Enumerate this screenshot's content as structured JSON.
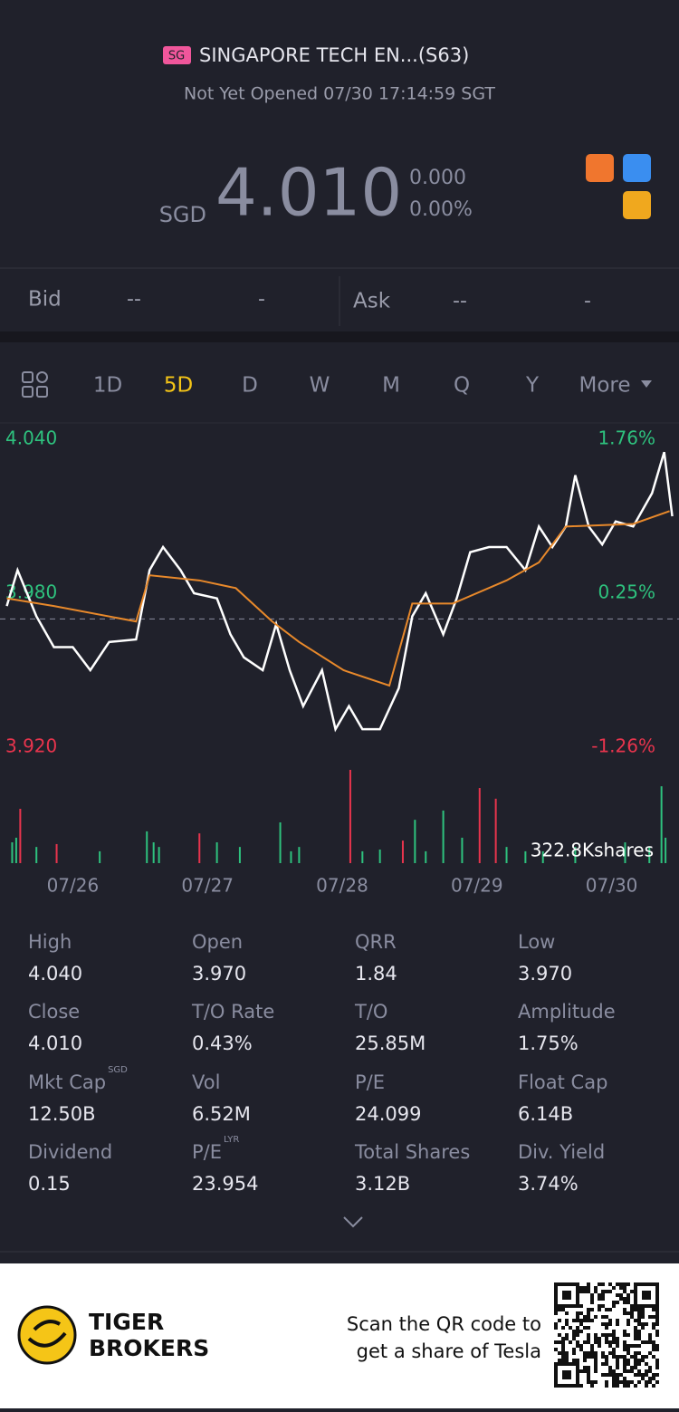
{
  "header": {
    "badge": "SG",
    "name": "SINGAPORE TECH EN...(S63)",
    "status": "Not Yet Opened 07/30 17:14:59 SGT",
    "currency": "SGD",
    "price": "4.010",
    "change": "0.000",
    "change_pct": "0.00%"
  },
  "quote": {
    "bid_label": "Bid",
    "bid": "--",
    "bid_size": "-",
    "ask_label": "Ask",
    "ask": "--",
    "ask_size": "-"
  },
  "tabs": {
    "items": [
      "1D",
      "5D",
      "D",
      "W",
      "M",
      "Q",
      "Y",
      "More"
    ],
    "active": 1
  },
  "chart_data": {
    "type": "line",
    "xlim": [
      0,
      5
    ],
    "ylim": [
      3.92,
      4.04
    ],
    "y2lim": [
      -1.26,
      1.76
    ],
    "yticks": [
      {
        "value": 4.04,
        "label": "4.040"
      },
      {
        "value": 3.98,
        "label": "3.980"
      },
      {
        "value": 3.92,
        "label": "3.920"
      }
    ],
    "y2ticks": [
      {
        "value": 1.76,
        "label": "1.76%"
      },
      {
        "value": 0.25,
        "label": "0.25%"
      },
      {
        "value": -1.26,
        "label": "-1.26%"
      }
    ],
    "xticks": [
      {
        "value": 0.5,
        "label": "07/26"
      },
      {
        "value": 1.5,
        "label": "07/27"
      },
      {
        "value": 2.5,
        "label": "07/28"
      },
      {
        "value": 3.5,
        "label": "07/29"
      },
      {
        "value": 4.5,
        "label": "07/30"
      }
    ],
    "baseline": 3.97,
    "series": [
      {
        "color": "#ffffff",
        "x": [
          0.01,
          0.09,
          0.23,
          0.36,
          0.5,
          0.63,
          0.77,
          0.97,
          1.07,
          1.17,
          1.3,
          1.4,
          1.57,
          1.67,
          1.77,
          1.91,
          2.01,
          2.11,
          2.21,
          2.35,
          2.45,
          2.55,
          2.65,
          2.78,
          2.92,
          3.02,
          3.12,
          3.25,
          3.35,
          3.45,
          3.59,
          3.72,
          3.86,
          3.96,
          4.06,
          4.16,
          4.23,
          4.33,
          4.43,
          4.53,
          4.66,
          4.8,
          4.89,
          4.95
        ],
        "values": [
          3.975,
          3.989,
          3.971,
          3.959,
          3.959,
          3.95,
          3.961,
          3.962,
          3.989,
          3.998,
          3.989,
          3.98,
          3.978,
          3.964,
          3.955,
          3.95,
          3.968,
          3.95,
          3.936,
          3.95,
          3.927,
          3.936,
          3.927,
          3.927,
          3.943,
          3.971,
          3.98,
          3.964,
          3.978,
          3.996,
          3.998,
          3.998,
          3.989,
          4.006,
          3.998,
          4.006,
          4.026,
          4.006,
          3.999,
          4.008,
          4.006,
          4.019,
          4.035,
          4.01
        ]
      },
      {
        "color": "#e8892b",
        "x": [
          0.01,
          0.36,
          0.97,
          1.07,
          1.44,
          1.71,
          1.98,
          2.18,
          2.51,
          2.85,
          3.02,
          3.32,
          3.72,
          3.96,
          4.16,
          4.66,
          4.93
        ],
        "values": [
          3.978,
          3.975,
          3.969,
          3.987,
          3.985,
          3.982,
          3.969,
          3.961,
          3.95,
          3.944,
          3.976,
          3.976,
          3.985,
          3.992,
          4.006,
          4.007,
          4.012
        ]
      }
    ],
    "volume": {
      "label": "322.8Kshares",
      "ylim": [
        0,
        322.8
      ],
      "x": [
        0.05,
        0.08,
        0.11,
        0.23,
        0.38,
        0.7,
        1.05,
        1.1,
        1.14,
        1.44,
        1.57,
        1.74,
        2.04,
        2.12,
        2.18,
        2.56,
        2.65,
        2.78,
        2.95,
        3.04,
        3.12,
        3.25,
        3.39,
        3.52,
        3.64,
        3.72,
        3.86,
        3.99,
        4.23,
        4.6,
        4.78,
        4.87,
        4.9
      ],
      "values": [
        72,
        88,
        188,
        56,
        66,
        41,
        110,
        72,
        56,
        103,
        72,
        56,
        141,
        41,
        56,
        322.8,
        41,
        47,
        78,
        150,
        41,
        182,
        88,
        260,
        223,
        56,
        41,
        41,
        56,
        72,
        56,
        266,
        88
      ],
      "colors": [
        "#2ec27e",
        "#2ec27e",
        "#e8344d",
        "#2ec27e",
        "#e8344d",
        "#2ec27e",
        "#2ec27e",
        "#2ec27e",
        "#2ec27e",
        "#e8344d",
        "#2ec27e",
        "#2ec27e",
        "#2ec27e",
        "#2ec27e",
        "#2ec27e",
        "#e8344d",
        "#2ec27e",
        "#2ec27e",
        "#e8344d",
        "#2ec27e",
        "#2ec27e",
        "#2ec27e",
        "#2ec27e",
        "#e8344d",
        "#e8344d",
        "#2ec27e",
        "#2ec27e",
        "#2ec27e",
        "#2ec27e",
        "#2ec27e",
        "#2ec27e",
        "#2ec27e",
        "#2ec27e"
      ]
    }
  },
  "stats": [
    [
      {
        "label": "High",
        "value": "4.040"
      },
      {
        "label": "Open",
        "value": "3.970"
      },
      {
        "label": "QRR",
        "value": "1.84"
      },
      {
        "label": "Low",
        "value": "3.970"
      }
    ],
    [
      {
        "label": "Close",
        "value": "4.010"
      },
      {
        "label": "T/O Rate",
        "value": "0.43%"
      },
      {
        "label": "T/O",
        "value": "25.85M"
      },
      {
        "label": "Amplitude",
        "value": "1.75%"
      }
    ],
    [
      {
        "label": "Mkt Cap",
        "sup": "SGD",
        "value": "12.50B"
      },
      {
        "label": "Vol",
        "value": "6.52M"
      },
      {
        "label": "P/E",
        "value": "24.099"
      },
      {
        "label": "Float Cap",
        "value": "6.14B"
      }
    ],
    [
      {
        "label": "Dividend",
        "value": "0.15"
      },
      {
        "label": "P/E",
        "sup": "LYR",
        "value": "23.954"
      },
      {
        "label": "Total Shares",
        "value": "3.12B"
      },
      {
        "label": "Div. Yield",
        "value": "3.74%"
      }
    ]
  ],
  "footer": {
    "brand": [
      "TIGER",
      "BROKERS"
    ],
    "promo": [
      "Scan the QR code to",
      "get a share of Tesla"
    ]
  }
}
